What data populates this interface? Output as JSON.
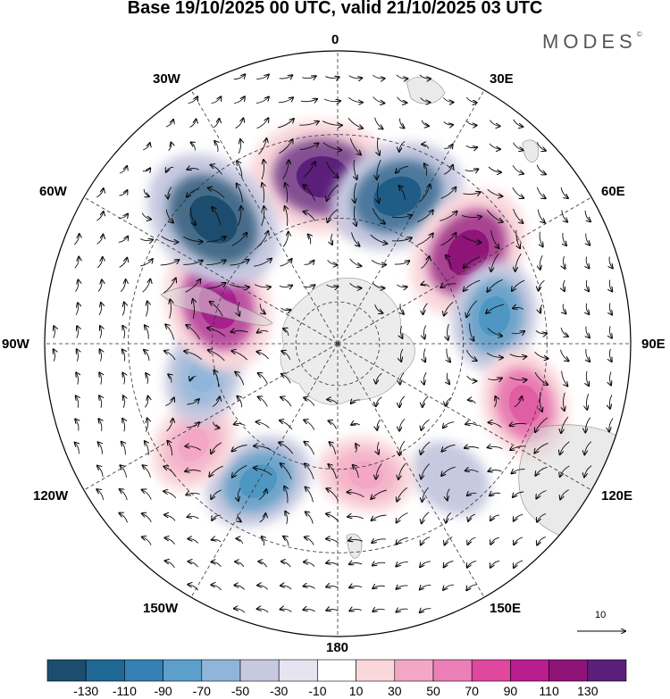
{
  "header": {
    "title": "Base 19/10/2025 00 UTC, valid 21/10/2025 03 UTC",
    "brand": "MODES",
    "brand_mark": "©"
  },
  "map": {
    "projection": "south-polar-stereographic",
    "longitude_labels": {
      "lon_0": "0",
      "lon_30e": "30E",
      "lon_60e": "60E",
      "lon_90e": "90E",
      "lon_120e": "120E",
      "lon_150e": "150E",
      "lon_180": "180",
      "lon_150w": "150W",
      "lon_120w": "120W",
      "lon_90w": "90W",
      "lon_60w": "60W",
      "lon_30w": "30W"
    },
    "reference_vector": "10",
    "anomaly_centers": [
      {
        "name": "pos-0",
        "lon": -5,
        "lat": -50,
        "value": 130,
        "color": "#5b1f7a"
      },
      {
        "name": "neg-20e",
        "lon": 22,
        "lat": -52,
        "value": -110,
        "color": "#1f5d86"
      },
      {
        "name": "pos-55e",
        "lon": 55,
        "lat": -52,
        "value": 110,
        "color": "#8e1478"
      },
      {
        "name": "neg-80e",
        "lon": 80,
        "lat": -52,
        "value": -70,
        "color": "#4f97c3"
      },
      {
        "name": "pos-110e",
        "lon": 108,
        "lat": -43,
        "value": 70,
        "color": "#e25ea4"
      },
      {
        "name": "neg-140e",
        "lon": 140,
        "lat": -48,
        "value": -30,
        "color": "#c7c9e0"
      },
      {
        "name": "pos-165e",
        "lon": 168,
        "lat": -58,
        "value": 50,
        "color": "#f3a7c4"
      },
      {
        "name": "neg-150w",
        "lon": -150,
        "lat": -52,
        "value": -70,
        "color": "#4f97c3"
      },
      {
        "name": "pos-125w",
        "lon": -125,
        "lat": -48,
        "value": 50,
        "color": "#f3a7c4"
      },
      {
        "name": "neg-105w",
        "lon": -103,
        "lat": -57,
        "value": -50,
        "color": "#8fb6d9"
      },
      {
        "name": "pos-75w",
        "lon": -72,
        "lat": -60,
        "value": 110,
        "color": "#a7208d"
      },
      {
        "name": "neg-40w",
        "lon": -45,
        "lat": -48,
        "value": -130,
        "color": "#1c4d6e"
      }
    ]
  },
  "colorbar": {
    "colors": [
      "#1c4d6e",
      "#1f6894",
      "#3580b5",
      "#5d9fcb",
      "#8fb6d9",
      "#c7c9e0",
      "#e6e4f0",
      "#ffffff",
      "#f9d7db",
      "#f3a7c4",
      "#ec7fb7",
      "#e0479f",
      "#b91d8e",
      "#8e1478",
      "#5b1f7a"
    ],
    "tick_labels": [
      "-130",
      "-110",
      "-90",
      "-70",
      "-50",
      "-30",
      "-10",
      "10",
      "30",
      "50",
      "70",
      "90",
      "110",
      "130"
    ]
  }
}
